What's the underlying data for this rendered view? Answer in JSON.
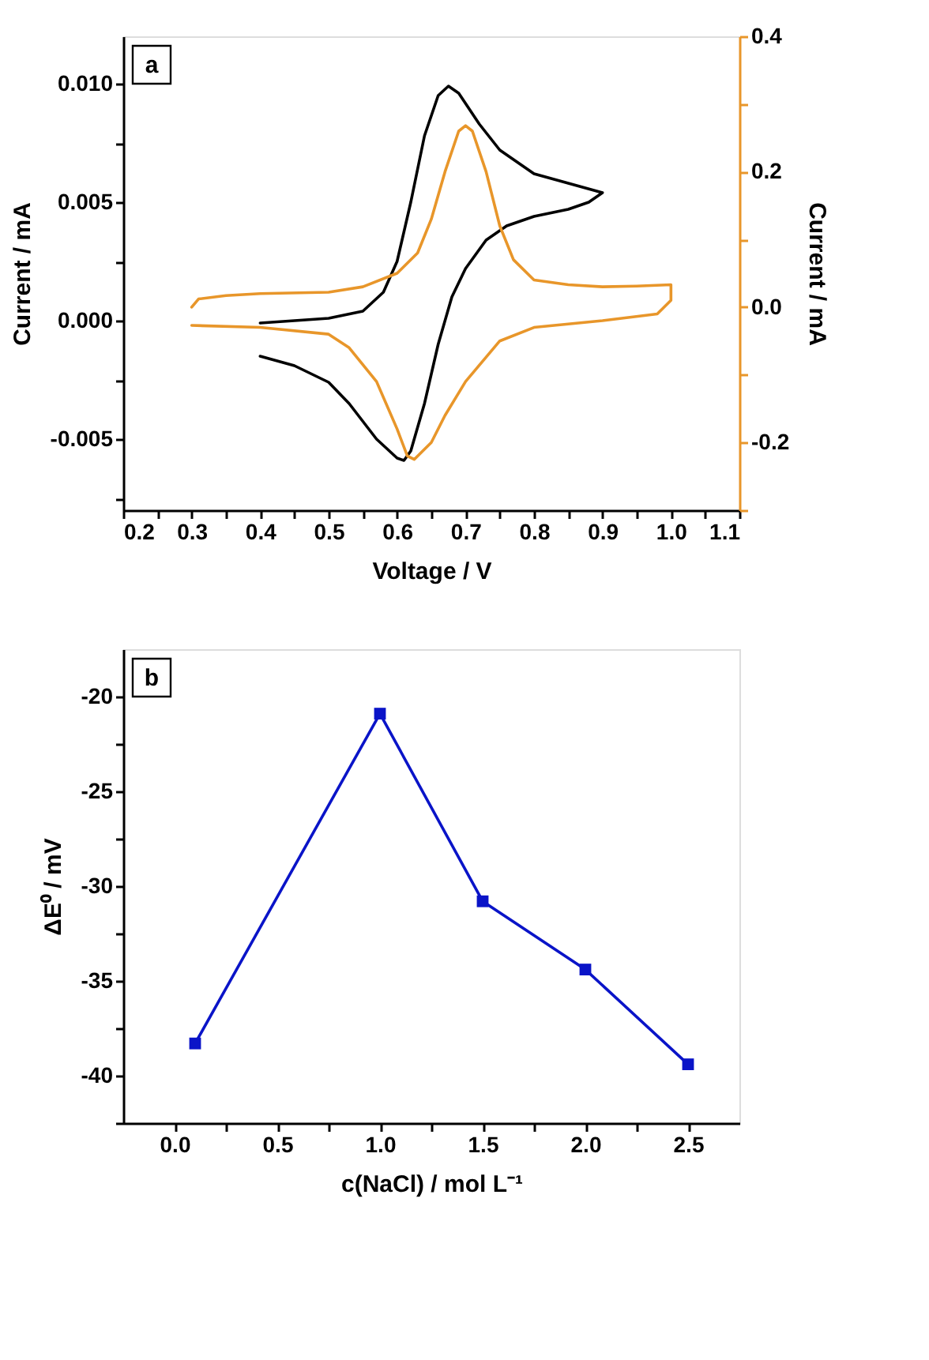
{
  "chart_data": [
    {
      "type": "line",
      "xlabel": "Voltage / V",
      "ylabel": "Current / mA",
      "y2label": "Current / mA",
      "annotations": [
        "a"
      ],
      "grid": false,
      "marker": "none",
      "line_style": "solid",
      "xlim": [
        0.2,
        1.1
      ],
      "xticks": [
        0.2,
        {
          "value": 0.25,
          "label": null
        },
        0.3,
        {
          "value": 0.35,
          "label": null
        },
        0.4,
        {
          "value": 0.45,
          "label": null
        },
        0.5,
        {
          "value": 0.55,
          "label": null
        },
        0.6,
        {
          "value": 0.65,
          "label": null
        },
        0.7,
        {
          "value": 0.75,
          "label": null
        },
        0.8,
        {
          "value": 0.85,
          "label": null
        },
        0.9,
        {
          "value": 0.95,
          "label": null
        },
        {
          "value": 1,
          "label": "1.0"
        },
        {
          "value": 1.05,
          "label": null
        },
        1.1
      ],
      "ylim": [
        -0.008,
        0.012
      ],
      "yticks": [
        {
          "value": -0.0075,
          "label": null
        },
        -0.005,
        {
          "value": -0.0025,
          "label": null
        },
        {
          "value": 0,
          "label": "0.000"
        },
        {
          "value": 0.0025,
          "label": null
        },
        0.005,
        {
          "value": 0.0075,
          "label": null
        },
        {
          "value": 0.01,
          "label": "0.010"
        }
      ],
      "y2lim": [
        -0.3,
        0.4
      ],
      "y2ticks": [
        {
          "value": -0.3,
          "label": null
        },
        -0.2,
        {
          "value": -0.1,
          "label": null
        },
        {
          "value": 0,
          "label": "0.0"
        },
        {
          "value": 0.1,
          "label": null
        },
        0.2,
        {
          "value": 0.3,
          "label": null
        },
        0.4
      ],
      "series": [
        {
          "color": "#000000",
          "x": [
            0.4,
            0.45,
            0.5,
            0.55,
            0.58,
            0.6,
            0.62,
            0.64,
            0.66,
            0.675,
            0.69,
            0.72,
            0.75,
            0.8,
            0.85,
            0.9,
            0.88,
            0.85,
            0.8,
            0.76,
            0.73,
            0.7,
            0.68,
            0.66,
            0.64,
            0.62,
            0.61,
            0.6,
            0.57,
            0.53,
            0.5,
            0.45,
            0.4
          ],
          "values": [
            -0.0001,
            0.0,
            0.0001,
            0.0004,
            0.0012,
            0.0025,
            0.005,
            0.0078,
            0.0095,
            0.0099,
            0.0096,
            0.0083,
            0.0072,
            0.0062,
            0.0058,
            0.0054,
            0.005,
            0.0047,
            0.0044,
            0.004,
            0.0034,
            0.0022,
            0.001,
            -0.001,
            -0.0035,
            -0.0055,
            -0.0059,
            -0.0058,
            -0.005,
            -0.0035,
            -0.0026,
            -0.0019,
            -0.0015
          ]
        },
        {
          "color": "#e8962a",
          "axis": "y2",
          "x": [
            0.3,
            0.31,
            0.35,
            0.4,
            0.5,
            0.55,
            0.6,
            0.63,
            0.65,
            0.67,
            0.69,
            0.7,
            0.71,
            0.73,
            0.75,
            0.77,
            0.8,
            0.85,
            0.9,
            0.95,
            1.0,
            1.0,
            0.98,
            0.9,
            0.8,
            0.75,
            0.7,
            0.67,
            0.65,
            0.625,
            0.615,
            0.6,
            0.57,
            0.53,
            0.5,
            0.4,
            0.3
          ],
          "values": [
            0.0,
            0.012,
            0.017,
            0.02,
            0.022,
            0.03,
            0.05,
            0.08,
            0.13,
            0.2,
            0.26,
            0.268,
            0.26,
            0.2,
            0.12,
            0.07,
            0.04,
            0.033,
            0.03,
            0.031,
            0.033,
            0.01,
            -0.01,
            -0.02,
            -0.03,
            -0.05,
            -0.11,
            -0.16,
            -0.2,
            -0.225,
            -0.22,
            -0.18,
            -0.11,
            -0.06,
            -0.04,
            -0.03,
            -0.027
          ]
        }
      ]
    },
    {
      "type": "line",
      "xlabel": "c(NaCl) / mol L⁻¹",
      "ylabel": "ΔE⁰ / mV",
      "annotations": [
        "b"
      ],
      "grid": false,
      "marker": "square",
      "line_style": "solid",
      "xlim": [
        -0.25,
        2.75
      ],
      "xticks": [
        {
          "value": 0,
          "label": "0.0"
        },
        {
          "value": 0.25,
          "label": null
        },
        0.5,
        {
          "value": 0.75,
          "label": null
        },
        {
          "value": 1,
          "label": "1.0"
        },
        {
          "value": 1.25,
          "label": null
        },
        1.5,
        {
          "value": 1.75,
          "label": null
        },
        {
          "value": 2,
          "label": "2.0"
        },
        {
          "value": 2.25,
          "label": null
        },
        2.5
      ],
      "ylim": [
        -42.5,
        -17.5
      ],
      "yticks": [
        {
          "value": -42.5,
          "label": null
        },
        -40,
        {
          "value": -37.5,
          "label": null
        },
        -35,
        {
          "value": -32.5,
          "label": null
        },
        -30,
        {
          "value": -27.5,
          "label": null
        },
        -25,
        {
          "value": -22.5,
          "label": null
        },
        -20
      ],
      "series": [
        {
          "color": "#0a14c8",
          "x": [
            0.1,
            1.0,
            1.5,
            2.0,
            2.5
          ],
          "values": [
            -38.3,
            -20.9,
            -30.8,
            -34.4,
            -39.4
          ]
        }
      ]
    }
  ]
}
